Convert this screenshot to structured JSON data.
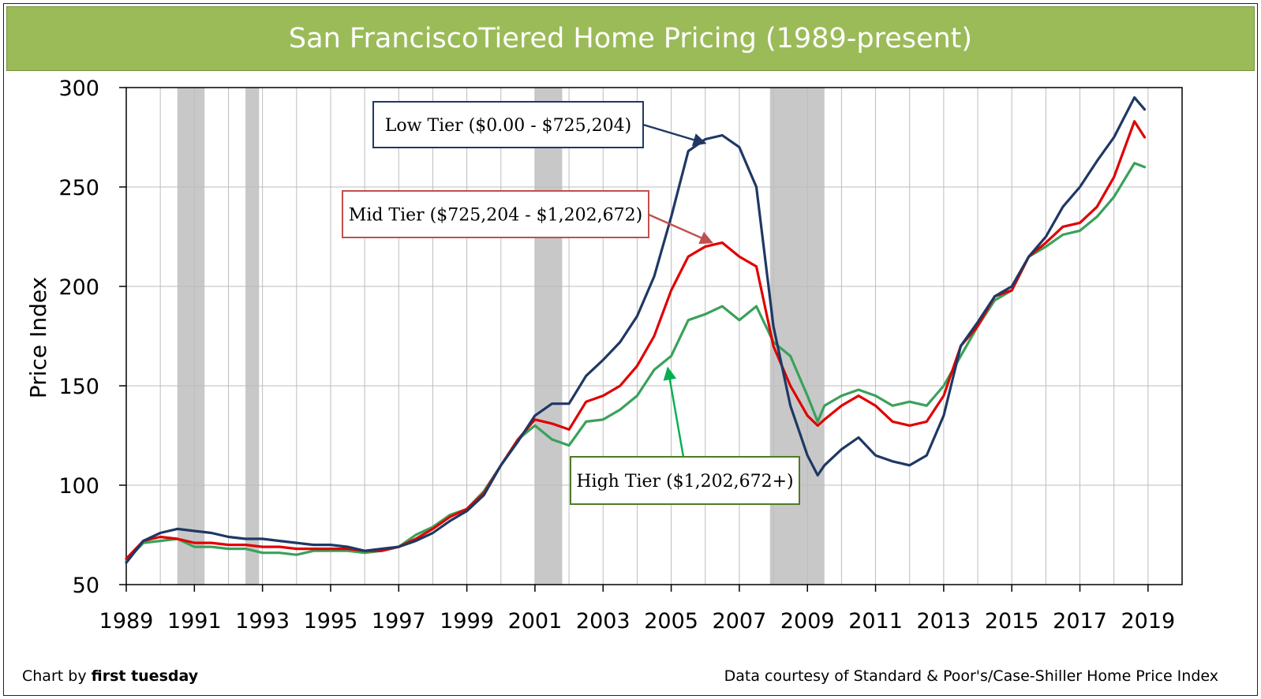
{
  "title": "San FranciscoTiered Home Pricing (1989-present)",
  "footer": {
    "credit_prefix": "Chart by ",
    "credit_brand": "first tuesday",
    "source": "Data courtesy of Standard & Poor's/Case-Shiller Home Price Index"
  },
  "chart_data": {
    "type": "line",
    "title": "San FranciscoTiered Home Pricing (1989-present)",
    "xlabel": "",
    "ylabel": "Price Index",
    "xlim": [
      1989,
      2020.0
    ],
    "ylim": [
      50,
      300
    ],
    "x_ticks": [
      1989,
      1991,
      1993,
      1995,
      1997,
      1999,
      2001,
      2003,
      2005,
      2007,
      2009,
      2011,
      2013,
      2015,
      2017,
      2019
    ],
    "y_ticks": [
      50,
      100,
      150,
      200,
      250,
      300
    ],
    "grid": true,
    "legend": "none",
    "recessions": [
      [
        1990.5,
        1991.3
      ],
      [
        1992.5,
        1992.9
      ],
      [
        2001.0,
        2001.8
      ],
      [
        2007.9,
        2009.5
      ]
    ],
    "series": [
      {
        "name": "Low Tier ($0.00 - $725,204)",
        "color": "#1f3864",
        "x": [
          1989.0,
          1989.5,
          1990.0,
          1990.5,
          1991.0,
          1991.5,
          1992.0,
          1992.5,
          1993.0,
          1993.5,
          1994.0,
          1994.5,
          1995.0,
          1995.5,
          1996.0,
          1996.5,
          1997.0,
          1997.5,
          1998.0,
          1998.5,
          1999.0,
          1999.5,
          2000.0,
          2000.5,
          2001.0,
          2001.5,
          2002.0,
          2002.5,
          2003.0,
          2003.5,
          2004.0,
          2004.5,
          2005.0,
          2005.5,
          2006.0,
          2006.5,
          2007.0,
          2007.5,
          2008.0,
          2008.5,
          2009.0,
          2009.3,
          2009.5,
          2010.0,
          2010.5,
          2011.0,
          2011.5,
          2012.0,
          2012.5,
          2013.0,
          2013.5,
          2014.0,
          2014.5,
          2015.0,
          2015.5,
          2016.0,
          2016.5,
          2017.0,
          2017.5,
          2018.0,
          2018.6,
          2018.9
        ],
        "values": [
          61,
          72,
          76,
          78,
          77,
          76,
          74,
          73,
          73,
          72,
          71,
          70,
          70,
          69,
          67,
          68,
          69,
          72,
          76,
          82,
          87,
          95,
          110,
          122,
          135,
          141,
          141,
          155,
          163,
          172,
          185,
          205,
          235,
          268,
          274,
          276,
          270,
          250,
          180,
          140,
          115,
          105,
          110,
          118,
          124,
          115,
          112,
          110,
          115,
          135,
          170,
          182,
          195,
          200,
          215,
          225,
          240,
          250,
          263,
          275,
          295,
          289
        ]
      },
      {
        "name": "Mid Tier ($725,204 - $1,202,672)",
        "color": "#e00000",
        "x": [
          1989.0,
          1989.5,
          1990.0,
          1990.5,
          1991.0,
          1991.5,
          1992.0,
          1992.5,
          1993.0,
          1993.5,
          1994.0,
          1994.5,
          1995.0,
          1995.5,
          1996.0,
          1996.5,
          1997.0,
          1997.5,
          1998.0,
          1998.5,
          1999.0,
          1999.5,
          2000.0,
          2000.5,
          2001.0,
          2001.5,
          2002.0,
          2002.5,
          2003.0,
          2003.5,
          2004.0,
          2004.5,
          2005.0,
          2005.5,
          2006.0,
          2006.5,
          2007.0,
          2007.5,
          2008.0,
          2008.5,
          2009.0,
          2009.3,
          2009.5,
          2010.0,
          2010.5,
          2011.0,
          2011.5,
          2012.0,
          2012.5,
          2013.0,
          2013.5,
          2014.0,
          2014.5,
          2015.0,
          2015.5,
          2016.0,
          2016.5,
          2017.0,
          2017.5,
          2018.0,
          2018.6,
          2018.9
        ],
        "values": [
          63,
          72,
          74,
          73,
          71,
          71,
          70,
          70,
          69,
          69,
          68,
          68,
          68,
          68,
          67,
          67,
          69,
          73,
          78,
          84,
          88,
          96,
          110,
          123,
          133,
          131,
          128,
          142,
          145,
          150,
          160,
          175,
          198,
          215,
          220,
          222,
          215,
          210,
          170,
          150,
          135,
          130,
          133,
          140,
          145,
          140,
          132,
          130,
          132,
          145,
          170,
          180,
          195,
          198,
          215,
          222,
          230,
          232,
          240,
          255,
          283,
          275
        ]
      },
      {
        "name": "High Tier ($1,202,672+)",
        "color": "#3aa15a",
        "x": [
          1989.0,
          1989.5,
          1990.0,
          1990.5,
          1991.0,
          1991.5,
          1992.0,
          1992.5,
          1993.0,
          1993.5,
          1994.0,
          1994.5,
          1995.0,
          1995.5,
          1996.0,
          1996.5,
          1997.0,
          1997.5,
          1998.0,
          1998.5,
          1999.0,
          1999.5,
          2000.0,
          2000.5,
          2001.0,
          2001.5,
          2002.0,
          2002.5,
          2003.0,
          2003.5,
          2004.0,
          2004.5,
          2005.0,
          2005.5,
          2006.0,
          2006.5,
          2007.0,
          2007.5,
          2008.0,
          2008.5,
          2009.0,
          2009.3,
          2009.5,
          2010.0,
          2010.5,
          2011.0,
          2011.5,
          2012.0,
          2012.5,
          2013.0,
          2013.5,
          2014.0,
          2014.5,
          2015.0,
          2015.5,
          2016.0,
          2016.5,
          2017.0,
          2017.5,
          2018.0,
          2018.6,
          2018.9
        ],
        "values": [
          62,
          71,
          72,
          73,
          69,
          69,
          68,
          68,
          66,
          66,
          65,
          67,
          67,
          67,
          66,
          67,
          69,
          75,
          79,
          85,
          88,
          97,
          110,
          123,
          130,
          123,
          120,
          132,
          133,
          138,
          145,
          158,
          165,
          183,
          186,
          190,
          183,
          190,
          172,
          165,
          145,
          132,
          140,
          145,
          148,
          145,
          140,
          142,
          140,
          150,
          165,
          180,
          193,
          198,
          215,
          220,
          226,
          228,
          235,
          245,
          262,
          260
        ]
      }
    ],
    "annotations": [
      {
        "text": "Low Tier ($0.00 - $725,204)",
        "series": 0,
        "point_x": 2006.0,
        "point_y": 272
      },
      {
        "text": "Mid Tier ($725,204 - $1,202,672)",
        "series": 1,
        "point_x": 2006.2,
        "point_y": 222
      },
      {
        "text": "High Tier ($1,202,672+)",
        "series": 2,
        "point_x": 2004.9,
        "point_y": 159
      }
    ]
  }
}
